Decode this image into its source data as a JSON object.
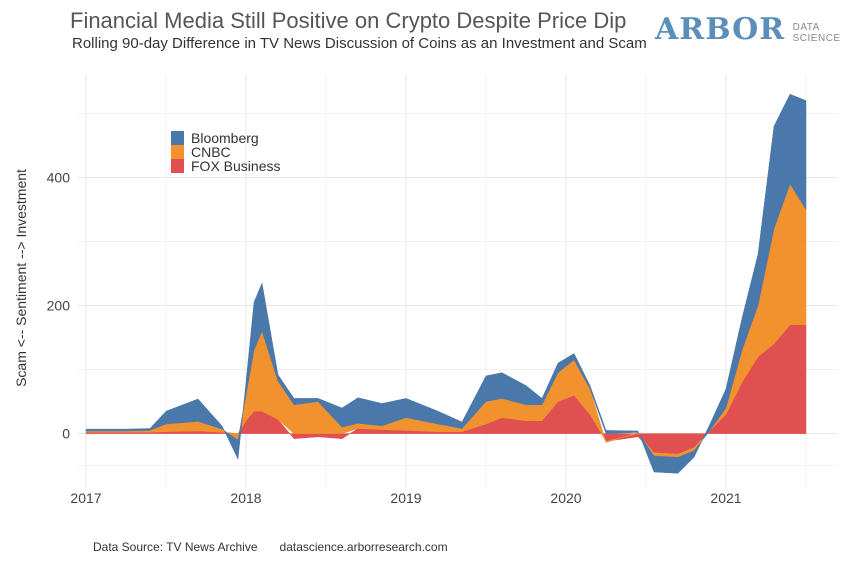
{
  "header": {
    "title": "Financial Media Still Positive on Crypto Despite Price Dip",
    "subtitle": "Rolling 90-day Difference in TV News Discussion of Coins as an Investment and Scam"
  },
  "logo": {
    "main": "ARBOR",
    "sub_line1": "DATA",
    "sub_line2": "SCIENCE",
    "color": "#5b8fb9"
  },
  "footer": {
    "source": "Data Source: TV News Archive",
    "website": "datascience.arborresearch.com"
  },
  "chart_data": {
    "type": "area",
    "stacked": true,
    "ylabel": "Scam <-- Sentiment --> Investment",
    "xlabel": "",
    "xlim": [
      2016.95,
      2021.7
    ],
    "ylim": [
      -85,
      560
    ],
    "x_ticks": [
      2017,
      2018,
      2019,
      2020,
      2021
    ],
    "y_ticks": [
      0,
      200,
      400
    ],
    "grid": true,
    "legend": "top-left",
    "x": [
      2017.0,
      2017.25,
      2017.4,
      2017.5,
      2017.7,
      2017.85,
      2017.95,
      2018.0,
      2018.05,
      2018.1,
      2018.2,
      2018.3,
      2018.45,
      2018.6,
      2018.7,
      2018.85,
      2019.0,
      2019.2,
      2019.35,
      2019.5,
      2019.6,
      2019.75,
      2019.85,
      2019.95,
      2020.05,
      2020.15,
      2020.25,
      2020.45,
      2020.55,
      2020.7,
      2020.8,
      2020.9,
      2021.0,
      2021.1,
      2021.2,
      2021.3,
      2021.4,
      2021.5
    ],
    "series": [
      {
        "name": "FOX Business",
        "color": "#e05050",
        "values": [
          2,
          2,
          2,
          3,
          4,
          2,
          0,
          20,
          35,
          35,
          22,
          -8,
          -5,
          -8,
          8,
          6,
          5,
          3,
          3,
          15,
          25,
          20,
          20,
          50,
          60,
          30,
          -12,
          -5,
          -30,
          -32,
          -22,
          5,
          30,
          80,
          120,
          140,
          170,
          170
        ]
      },
      {
        "name": "CNBC",
        "color": "#f2922f",
        "values": [
          2,
          2,
          3,
          12,
          15,
          5,
          -10,
          40,
          95,
          125,
          60,
          45,
          50,
          10,
          8,
          6,
          20,
          12,
          5,
          35,
          30,
          25,
          25,
          45,
          55,
          40,
          -2,
          2,
          -5,
          -5,
          -5,
          0,
          10,
          50,
          80,
          180,
          220,
          180
        ]
      },
      {
        "name": "Bloomberg",
        "color": "#4a78aa",
        "values": [
          3,
          3,
          3,
          20,
          35,
          5,
          -30,
          20,
          75,
          75,
          10,
          10,
          5,
          30,
          40,
          35,
          30,
          20,
          10,
          40,
          40,
          30,
          10,
          15,
          10,
          5,
          5,
          2,
          -25,
          -25,
          -10,
          10,
          30,
          50,
          80,
          160,
          140,
          170
        ]
      }
    ]
  }
}
